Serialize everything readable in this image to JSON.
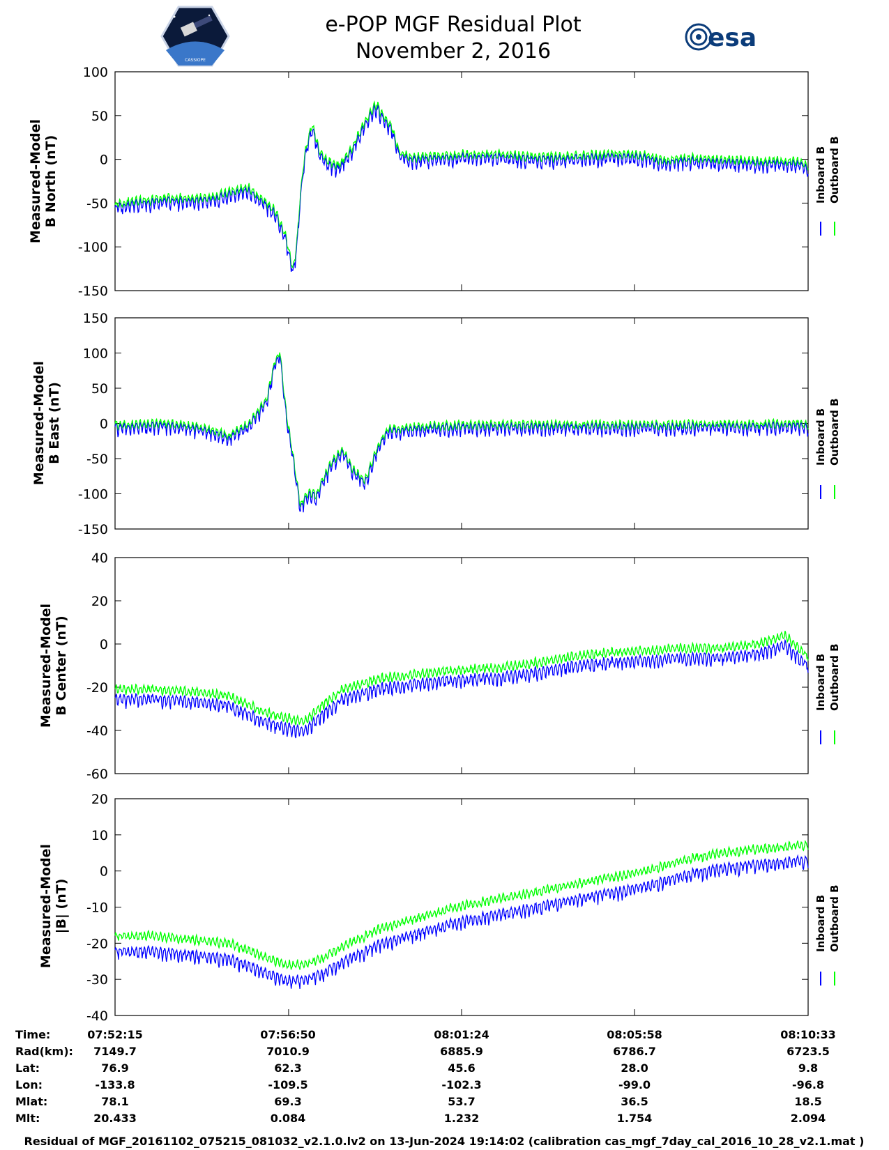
{
  "header": {
    "title": "e-POP MGF Residual Plot",
    "subtitle": "November 2, 2016",
    "left_logo_icon": "cassiope-satellite-logo",
    "left_logo_text": "CASSIOPE",
    "right_logo_icon": "esa-logo",
    "right_logo_text": "esa"
  },
  "colors": {
    "inboard": "#0000ff",
    "outboard": "#00ff00",
    "frame": "#000000",
    "background": "#ffffff"
  },
  "chart_data": [
    {
      "type": "line",
      "id": "north",
      "ylabel_lines": [
        "Measured-Model",
        "B North (nT)"
      ],
      "ylim": [
        -150,
        100
      ],
      "yticks": [
        100,
        50,
        0,
        -50,
        -100,
        -150
      ],
      "legend": [
        "Inboard B",
        "Outboard B"
      ],
      "outboard_offset": 3,
      "series": [
        {
          "name": "Inboard B",
          "color": "#0000ff",
          "x": [
            0,
            0.6,
            1.2,
            1.8,
            2.4,
            3.0,
            3.5,
            3.9,
            4.2,
            4.5,
            4.7,
            4.8,
            4.9,
            5.0,
            5.2,
            5.4,
            5.6,
            5.9,
            6.2,
            6.6,
            6.9,
            7.1,
            7.3,
            7.5,
            7.8,
            8.2,
            9.0,
            10.0,
            11.0,
            12.0,
            13.0,
            14.0,
            14.5,
            15.0,
            16.0,
            17.0,
            18.0,
            18.3
          ],
          "y": [
            -55,
            -50,
            -48,
            -47,
            -48,
            -40,
            -35,
            -50,
            -60,
            -90,
            -130,
            -100,
            -40,
            0,
            38,
            5,
            -5,
            -10,
            5,
            40,
            60,
            45,
            35,
            5,
            0,
            0,
            2,
            3,
            0,
            0,
            3,
            2,
            -5,
            -2,
            -3,
            -5,
            -5,
            -10
          ]
        }
      ]
    },
    {
      "type": "line",
      "id": "east",
      "ylabel_lines": [
        "Measured-Model",
        "B East (nT)"
      ],
      "ylim": [
        -150,
        150
      ],
      "yticks": [
        150,
        100,
        50,
        0,
        -50,
        -100,
        -150
      ],
      "legend": [
        "Inboard B",
        "Outboard B"
      ],
      "outboard_offset": 3,
      "series": [
        {
          "name": "Inboard B",
          "color": "#0000ff",
          "x": [
            0,
            0.6,
            1.2,
            1.8,
            2.4,
            3.0,
            3.5,
            4.0,
            4.2,
            4.35,
            4.5,
            4.7,
            4.9,
            5.1,
            5.3,
            5.7,
            6.0,
            6.3,
            6.6,
            6.9,
            7.2,
            7.5,
            7.8,
            8.2,
            9.0,
            10.0,
            11.0,
            12.0,
            13.0,
            14.0,
            15.0,
            16.0,
            17.0,
            18.0,
            18.3
          ],
          "y": [
            -5,
            -5,
            -3,
            -5,
            -10,
            -20,
            -5,
            30,
            80,
            100,
            20,
            -50,
            -120,
            -100,
            -105,
            -60,
            -40,
            -70,
            -85,
            -40,
            -10,
            -10,
            -8,
            -7,
            -6,
            -5,
            -5,
            -5,
            -5,
            -5,
            -5,
            -4,
            -5,
            -3,
            -5
          ]
        }
      ]
    },
    {
      "type": "line",
      "id": "center",
      "ylabel_lines": [
        "Measured-Model",
        "B Center (nT)"
      ],
      "ylim": [
        -60,
        40
      ],
      "yticks": [
        40,
        20,
        0,
        -20,
        -40,
        -60
      ],
      "legend": [
        "Inboard B",
        "Outboard B"
      ],
      "outboard_offset": 4,
      "series": [
        {
          "name": "Inboard B",
          "color": "#0000ff",
          "x": [
            0,
            1.0,
            2.0,
            3.0,
            3.5,
            4.0,
            4.5,
            5.0,
            5.5,
            6.0,
            7.0,
            8.0,
            9.0,
            10.0,
            11.0,
            12.0,
            13.0,
            14.0,
            15.0,
            16.0,
            17.0,
            17.7,
            18.0,
            18.3
          ],
          "y": [
            -25,
            -25,
            -26,
            -28,
            -32,
            -36,
            -38,
            -40,
            -32,
            -25,
            -20,
            -18,
            -16,
            -15,
            -13,
            -10,
            -8,
            -7,
            -6,
            -6,
            -4,
            0,
            -5,
            -10
          ]
        }
      ]
    },
    {
      "type": "line",
      "id": "magnitude",
      "ylabel_lines": [
        "Measured-Model",
        "|B| (nT)"
      ],
      "ylim": [
        -40,
        20
      ],
      "yticks": [
        20,
        10,
        0,
        -10,
        -20,
        -30,
        -40
      ],
      "legend": [
        "Inboard B",
        "Outboard B"
      ],
      "outboard_offset": 4,
      "series": [
        {
          "name": "Inboard B",
          "color": "#0000ff",
          "x": [
            0,
            1.0,
            2.0,
            3.0,
            3.5,
            4.0,
            4.5,
            5.0,
            5.5,
            6.0,
            7.0,
            8.0,
            9.0,
            10.0,
            11.0,
            12.0,
            13.0,
            14.0,
            15.0,
            16.0,
            17.0,
            18.0,
            18.3
          ],
          "y": [
            -22,
            -22,
            -23,
            -24,
            -26,
            -28,
            -30,
            -30,
            -28,
            -25,
            -20,
            -17,
            -14,
            -12,
            -10,
            -8,
            -6,
            -4,
            -1,
            1,
            2,
            3,
            3
          ]
        }
      ]
    }
  ],
  "time_axis": {
    "duration_min": 18.3,
    "tick_positions_min": [
      0,
      4.583,
      9.15,
      13.717,
      18.3
    ],
    "rows": [
      {
        "label": "Time:",
        "values": [
          "07:52:15",
          "07:56:50",
          "08:01:24",
          "08:05:58",
          "08:10:33"
        ]
      },
      {
        "label": "Rad(km):",
        "values": [
          "7149.7",
          "7010.9",
          "6885.9",
          "6786.7",
          "6723.5"
        ]
      },
      {
        "label": "Lat:",
        "values": [
          "76.9",
          "62.3",
          "45.6",
          "28.0",
          "9.8"
        ]
      },
      {
        "label": "Lon:",
        "values": [
          "-133.8",
          "-109.5",
          "-102.3",
          "-99.0",
          "-96.8"
        ]
      },
      {
        "label": "Mlat:",
        "values": [
          "78.1",
          "69.3",
          "53.7",
          "36.5",
          "18.5"
        ]
      },
      {
        "label": "Mlt:",
        "values": [
          "20.433",
          "0.084",
          "1.232",
          "1.754",
          "2.094"
        ]
      }
    ]
  },
  "footer": "Residual of MGF_20161102_075215_081032_v2.1.0.lv2 on 13-Jun-2024 19:14:02 (calibration cas_mgf_7day_cal_2016_10_28_v2.1.mat )"
}
